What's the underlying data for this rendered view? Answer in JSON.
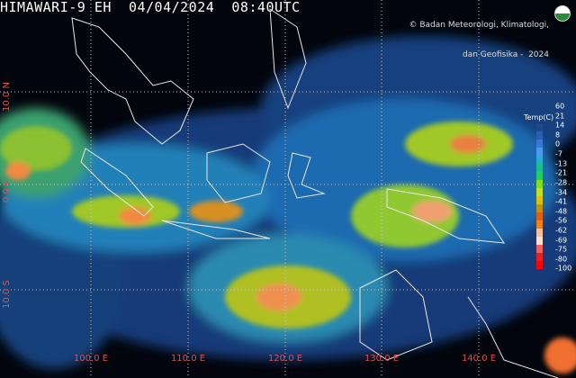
{
  "title": "HIMAWARI-9 EH  04/04/2024  08:40UTC",
  "credit": {
    "line1": "© Badan Meteorologi, Klimatologi,",
    "line2": "dan Geofisika -  2024",
    "logo_text": "BMKG"
  },
  "longitude_labels": [
    "100.0 E",
    "110.0 E",
    "120.0 E",
    "130.0 E",
    "140.0 E"
  ],
  "latitude_labels": [
    "10.0 N",
    "0.0 E",
    "10.0 S"
  ],
  "colorbar": {
    "title": "Temp(C)",
    "labels": [
      "60",
      "21",
      "14",
      "8",
      "0",
      "-7",
      "-13",
      "-21",
      "-28",
      "-34",
      "-41",
      "-48",
      "-56",
      "-62",
      "-69",
      "-75",
      "-80",
      "-100"
    ],
    "colors": [
      "#1a4a8a",
      "#2a5fb0",
      "#3a78d8",
      "#4a98f0",
      "#28b0c8",
      "#18c090",
      "#20d060",
      "#80e020",
      "#c0e020",
      "#d8c010",
      "#c09010",
      "#e06010",
      "#f08010",
      "#f8c0a0",
      "#ffe0d0",
      "#f06060",
      "#e82020",
      "#ff0000"
    ]
  }
}
